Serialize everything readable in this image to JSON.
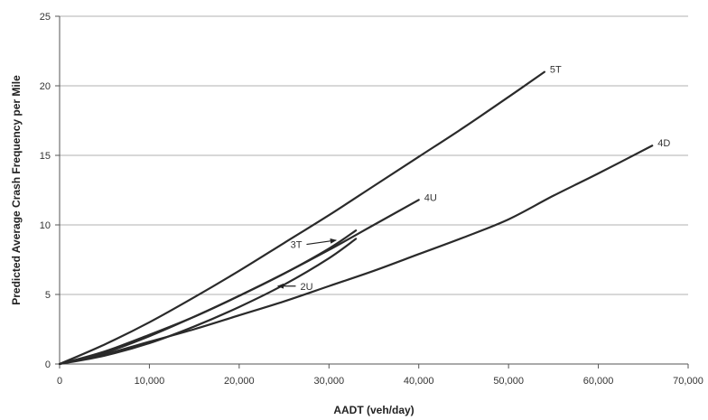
{
  "chart_data": {
    "type": "line",
    "title": "",
    "xlabel": "AADT (veh/day)",
    "ylabel": "Predicted Average Crash Frequency per Mile",
    "xlim": [
      0,
      70000
    ],
    "ylim": [
      0,
      25
    ],
    "x_ticks": [
      0,
      10000,
      20000,
      30000,
      40000,
      50000,
      60000,
      70000
    ],
    "x_tick_labels": [
      "0",
      "10,000",
      "20,000",
      "30,000",
      "40,000",
      "50,000",
      "60,000",
      "70,000"
    ],
    "y_ticks": [
      0,
      5,
      10,
      15,
      20,
      25
    ],
    "y_tick_labels": [
      "0",
      "5",
      "10",
      "15",
      "20",
      "25"
    ],
    "grid": "horizontal",
    "legend": "none",
    "series": [
      {
        "name": "5T",
        "x": [
          0,
          5000,
          10000,
          15000,
          20000,
          25000,
          30000,
          35000,
          40000,
          45000,
          50000,
          54000
        ],
        "y": [
          0,
          1.4,
          3.0,
          4.8,
          6.7,
          8.7,
          10.7,
          12.8,
          14.9,
          17.0,
          19.2,
          21.0
        ]
      },
      {
        "name": "4D",
        "x": [
          0,
          5000,
          10000,
          15000,
          20000,
          25000,
          30000,
          35000,
          40000,
          45000,
          50000,
          55000,
          60000,
          66000
        ],
        "y": [
          0,
          0.7,
          1.6,
          2.5,
          3.5,
          4.5,
          5.6,
          6.7,
          7.9,
          9.1,
          10.4,
          12.1,
          13.7,
          15.7
        ]
      },
      {
        "name": "4U",
        "x": [
          0,
          5000,
          10000,
          15000,
          20000,
          25000,
          30000,
          35000,
          40000
        ],
        "y": [
          0,
          0.8,
          2.0,
          3.4,
          4.9,
          6.5,
          8.2,
          10.0,
          11.8
        ]
      },
      {
        "name": "3T",
        "x": [
          0,
          5000,
          10000,
          15000,
          20000,
          25000,
          30000,
          33000
        ],
        "y": [
          0,
          0.9,
          2.1,
          3.4,
          4.9,
          6.5,
          8.3,
          9.6
        ]
      },
      {
        "name": "2U",
        "x": [
          0,
          5000,
          10000,
          15000,
          20000,
          25000,
          30000,
          33000
        ],
        "y": [
          0,
          0.6,
          1.5,
          2.7,
          4.1,
          5.7,
          7.6,
          9.0
        ]
      }
    ],
    "annotations": [
      {
        "text": "5T",
        "x": 54000,
        "y": 21.0
      },
      {
        "text": "4D",
        "x": 66000,
        "y": 15.7
      },
      {
        "text": "4U",
        "x": 40000,
        "y": 11.8
      },
      {
        "text": "3T",
        "x": 27000,
        "y": 8.6,
        "arrow_to": [
          30800,
          8.9
        ]
      },
      {
        "text": "2U",
        "x": 26800,
        "y": 5.6,
        "arrow_to": [
          24300,
          5.6
        ]
      }
    ]
  }
}
